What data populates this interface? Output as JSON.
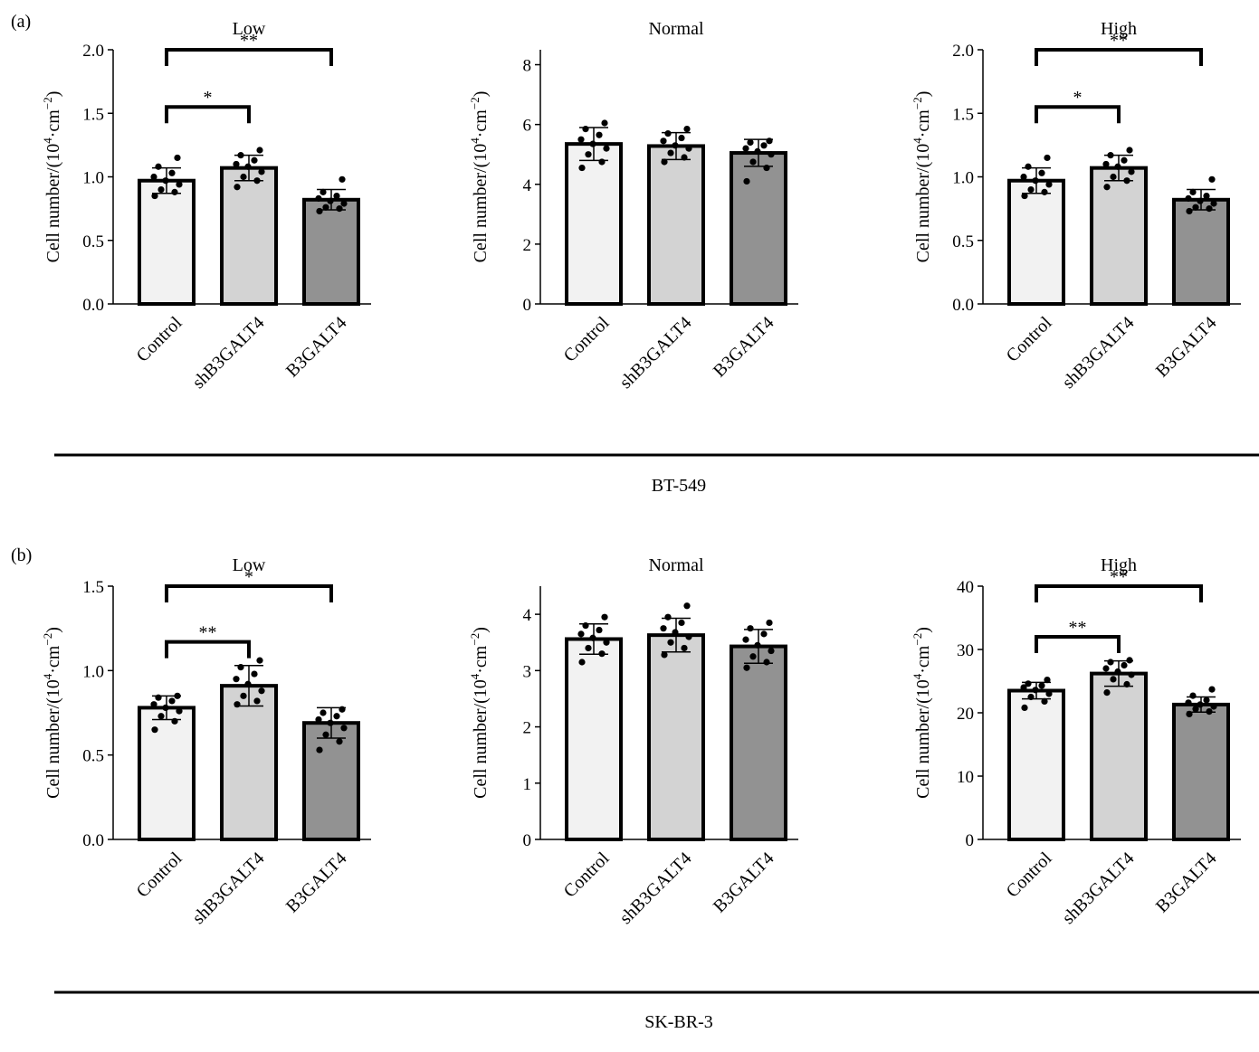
{
  "panel_labels": [
    "(a)",
    "(b)"
  ],
  "cell_lines": [
    "BT-549",
    "SK-BR-3"
  ],
  "style": {
    "bar_colors": [
      "#f2f2f2",
      "#d3d3d3",
      "#929292"
    ],
    "stroke_color": "#000000"
  },
  "chart_data": [
    {
      "type": "bar",
      "panel": "(a)",
      "cell_line": "BT-549",
      "title": "Low",
      "ylabel_main": "Cell number/(10",
      "ylabel_sup1": "4",
      "ylabel_mid": "·cm",
      "ylabel_sup2": "−2",
      "ylabel_end": ")",
      "categories": [
        "Control",
        "shB3GALT4",
        "B3GALT4"
      ],
      "values": [
        0.97,
        1.07,
        0.82
      ],
      "errors": [
        0.1,
        0.1,
        0.08
      ],
      "points": [
        [
          0.85,
          0.88,
          0.9,
          0.94,
          0.97,
          1.0,
          1.03,
          1.08,
          1.15
        ],
        [
          0.92,
          0.97,
          1.0,
          1.04,
          1.08,
          1.1,
          1.13,
          1.17,
          1.21
        ],
        [
          0.73,
          0.75,
          0.76,
          0.79,
          0.81,
          0.83,
          0.85,
          0.88,
          0.98
        ]
      ],
      "ylim": [
        0,
        2.0
      ],
      "yticks": [
        0.0,
        0.5,
        1.0,
        1.5,
        2.0
      ],
      "ytick_labels": [
        "0.0",
        "0.5",
        "1.0",
        "1.5",
        "2.0"
      ],
      "significance": [
        {
          "from": 0,
          "to": 1,
          "y": 1.55,
          "label": "*"
        },
        {
          "from": 0,
          "to": 2,
          "y": 2.0,
          "label": "**"
        }
      ]
    },
    {
      "type": "bar",
      "panel": "(a)",
      "cell_line": "BT-549",
      "title": "Normal",
      "ylabel_main": "Cell number/(10",
      "ylabel_sup1": "4",
      "ylabel_mid": "·cm",
      "ylabel_sup2": "−2",
      "ylabel_end": ")",
      "categories": [
        "Control",
        "shB3GALT4",
        "B3GALT4"
      ],
      "values": [
        5.35,
        5.28,
        5.05
      ],
      "errors": [
        0.55,
        0.45,
        0.45
      ],
      "points": [
        [
          4.55,
          4.75,
          5.0,
          5.2,
          5.35,
          5.5,
          5.65,
          5.85,
          6.05
        ],
        [
          4.75,
          4.9,
          5.05,
          5.2,
          5.3,
          5.45,
          5.55,
          5.7,
          5.85
        ],
        [
          4.1,
          4.55,
          4.75,
          5.0,
          5.1,
          5.2,
          5.3,
          5.4,
          5.45
        ]
      ],
      "ylim": [
        0,
        8.5
      ],
      "yticks": [
        0,
        2,
        4,
        6,
        8
      ],
      "ytick_labels": [
        "0",
        "2",
        "4",
        "6",
        "8"
      ],
      "significance": []
    },
    {
      "type": "bar",
      "panel": "(a)",
      "cell_line": "BT-549",
      "title": "High",
      "ylabel_main": "Cell number/(10",
      "ylabel_sup1": "4",
      "ylabel_mid": "·cm",
      "ylabel_sup2": "−2",
      "ylabel_end": ")",
      "categories": [
        "Control",
        "shB3GALT4",
        "B3GALT4"
      ],
      "values": [
        0.97,
        1.07,
        0.82
      ],
      "errors": [
        0.1,
        0.1,
        0.08
      ],
      "points": [
        [
          0.85,
          0.88,
          0.9,
          0.94,
          0.97,
          1.0,
          1.03,
          1.08,
          1.15
        ],
        [
          0.92,
          0.97,
          1.0,
          1.04,
          1.08,
          1.1,
          1.13,
          1.17,
          1.21
        ],
        [
          0.73,
          0.75,
          0.76,
          0.79,
          0.81,
          0.83,
          0.85,
          0.88,
          0.98
        ]
      ],
      "ylim": [
        0,
        2.0
      ],
      "yticks": [
        0.0,
        0.5,
        1.0,
        1.5,
        2.0
      ],
      "ytick_labels": [
        "0.0",
        "0.5",
        "1.0",
        "1.5",
        "2.0"
      ],
      "significance": [
        {
          "from": 0,
          "to": 1,
          "y": 1.55,
          "label": "*"
        },
        {
          "from": 0,
          "to": 2,
          "y": 2.0,
          "label": "**"
        }
      ]
    },
    {
      "type": "bar",
      "panel": "(b)",
      "cell_line": "SK-BR-3",
      "title": "Low",
      "ylabel_main": "Cell number/(10",
      "ylabel_sup1": "4",
      "ylabel_mid": "·cm",
      "ylabel_sup2": "−2",
      "ylabel_end": ")",
      "categories": [
        "Control",
        "shB3GALT4",
        "B3GALT4"
      ],
      "values": [
        0.78,
        0.91,
        0.69
      ],
      "errors": [
        0.07,
        0.12,
        0.09
      ],
      "points": [
        [
          0.65,
          0.7,
          0.73,
          0.76,
          0.78,
          0.8,
          0.82,
          0.84,
          0.85
        ],
        [
          0.8,
          0.82,
          0.85,
          0.88,
          0.92,
          0.95,
          0.98,
          1.02,
          1.06
        ],
        [
          0.53,
          0.58,
          0.62,
          0.66,
          0.69,
          0.71,
          0.73,
          0.75,
          0.77
        ]
      ],
      "ylim": [
        0,
        1.5
      ],
      "yticks": [
        0.0,
        0.5,
        1.0,
        1.5
      ],
      "ytick_labels": [
        "0.0",
        "0.5",
        "1.0",
        "1.5"
      ],
      "significance": [
        {
          "from": 0,
          "to": 1,
          "y": 1.17,
          "label": "**"
        },
        {
          "from": 0,
          "to": 2,
          "y": 1.5,
          "label": "*"
        }
      ]
    },
    {
      "type": "bar",
      "panel": "(b)",
      "cell_line": "SK-BR-3",
      "title": "Normal",
      "ylabel_main": "Cell number/(10",
      "ylabel_sup1": "4",
      "ylabel_mid": "·cm",
      "ylabel_sup2": "−2",
      "ylabel_end": ")",
      "categories": [
        "Control",
        "shB3GALT4",
        "B3GALT4"
      ],
      "values": [
        3.56,
        3.63,
        3.43
      ],
      "errors": [
        0.27,
        0.3,
        0.3
      ],
      "points": [
        [
          3.15,
          3.3,
          3.4,
          3.5,
          3.58,
          3.65,
          3.72,
          3.8,
          3.95
        ],
        [
          3.28,
          3.4,
          3.5,
          3.6,
          3.68,
          3.75,
          3.85,
          3.95,
          4.15
        ],
        [
          3.05,
          3.15,
          3.25,
          3.35,
          3.45,
          3.55,
          3.65,
          3.75,
          3.85
        ]
      ],
      "ylim": [
        0,
        4.5
      ],
      "yticks": [
        0,
        1,
        2,
        3,
        4
      ],
      "ytick_labels": [
        "0",
        "1",
        "2",
        "3",
        "4"
      ],
      "significance": []
    },
    {
      "type": "bar",
      "panel": "(b)",
      "cell_line": "SK-BR-3",
      "title": "High",
      "ylabel_main": "Cell number/(10",
      "ylabel_sup1": "4",
      "ylabel_mid": "·cm",
      "ylabel_sup2": "−2",
      "ylabel_end": ")",
      "categories": [
        "Control",
        "shB3GALT4",
        "B3GALT4"
      ],
      "values": [
        23.5,
        26.2,
        21.3
      ],
      "errors": [
        1.3,
        2.0,
        1.2
      ],
      "points": [
        [
          20.8,
          21.8,
          22.5,
          23.0,
          23.6,
          24.0,
          24.3,
          24.6,
          25.2
        ],
        [
          23.2,
          24.5,
          25.3,
          26.0,
          26.5,
          27.0,
          27.5,
          28.0,
          28.3
        ],
        [
          19.8,
          20.2,
          20.6,
          21.0,
          21.3,
          21.6,
          22.0,
          22.7,
          23.7
        ]
      ],
      "ylim": [
        0,
        40
      ],
      "yticks": [
        0,
        10,
        20,
        30,
        40
      ],
      "ytick_labels": [
        "0",
        "10",
        "20",
        "30",
        "40"
      ],
      "significance": [
        {
          "from": 0,
          "to": 1,
          "y": 32.0,
          "label": "**"
        },
        {
          "from": 0,
          "to": 2,
          "y": 40.0,
          "label": "**"
        }
      ]
    }
  ]
}
